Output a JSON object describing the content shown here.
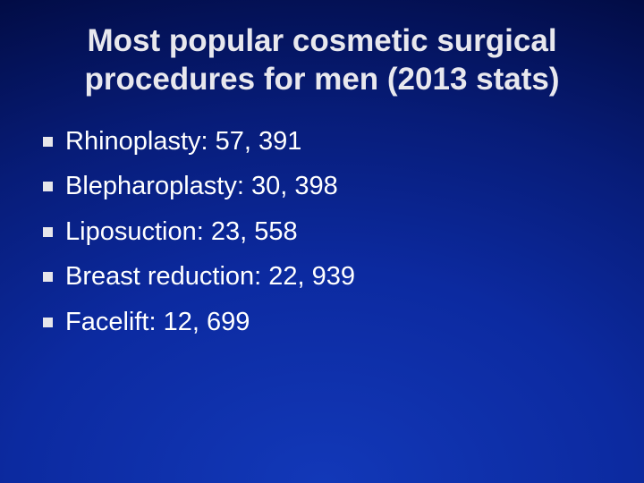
{
  "header": {
    "title_lines": [
      "Most popular cosmetic surgical",
      "procedures for men (2013 stats)"
    ]
  },
  "bullets": [
    "Rhinoplasty: 57, 391",
    "Blepharoplasty: 30, 398",
    "Liposuction: 23, 558",
    "Breast reduction: 22, 939",
    "Facelift: 12, 699"
  ]
}
